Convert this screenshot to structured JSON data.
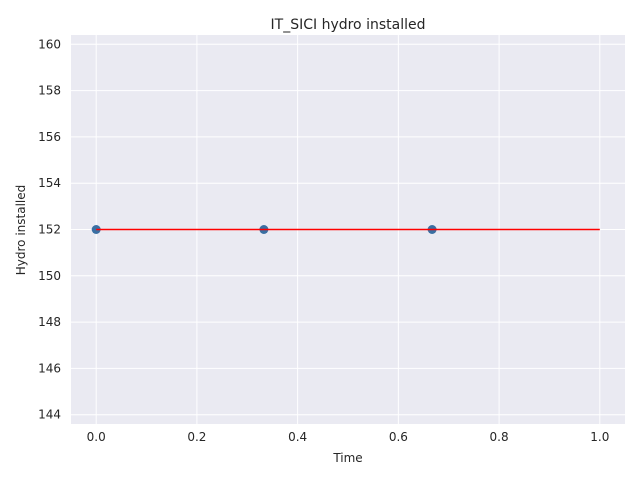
{
  "chart_data": {
    "type": "scatter",
    "title": "IT_SICI hydro installed",
    "xlabel": "Time",
    "ylabel": "Hydro installed",
    "xlim": [
      -0.05,
      1.05
    ],
    "ylim": [
      143.6,
      160.4
    ],
    "xticks": [
      0.0,
      0.2,
      0.4,
      0.6,
      0.8,
      1.0
    ],
    "xtick_labels": [
      "0.0",
      "0.2",
      "0.4",
      "0.6",
      "0.8",
      "1.0"
    ],
    "yticks": [
      144,
      146,
      148,
      150,
      152,
      154,
      156,
      158,
      160
    ],
    "ytick_labels": [
      "144",
      "146",
      "148",
      "150",
      "152",
      "154",
      "156",
      "158",
      "160"
    ],
    "grid": true,
    "series": [
      {
        "kind": "scatter",
        "x": [
          0.0,
          0.333,
          0.667
        ],
        "y": [
          152,
          152,
          152
        ],
        "color": "#3a6fa3"
      },
      {
        "kind": "line",
        "x": [
          0.0,
          1.0
        ],
        "y": [
          152,
          152
        ],
        "color": "#ff0000"
      }
    ],
    "background": "#eaeaf2",
    "grid_color": "#ffffff"
  }
}
